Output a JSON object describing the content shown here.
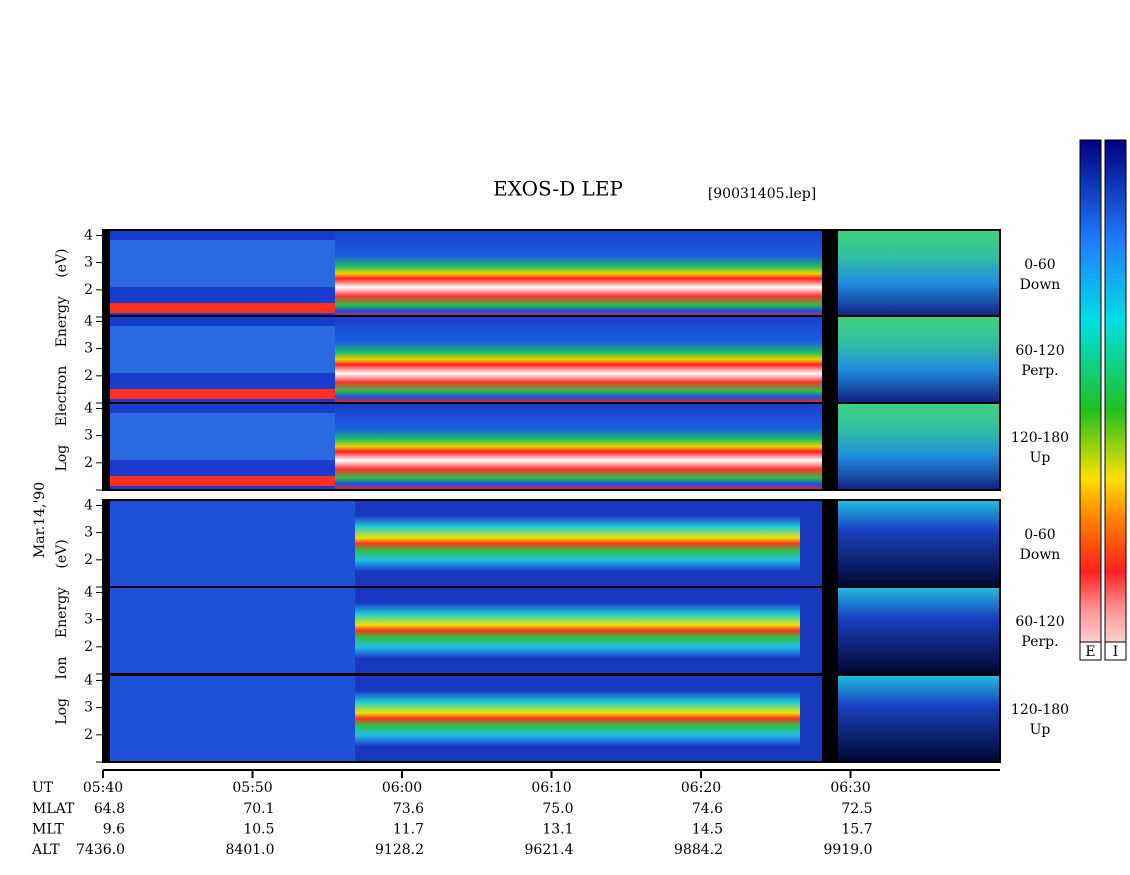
{
  "chart_data": {
    "type": "spectrogram",
    "title": "EXOS-D LEP",
    "subtitle": "[90031405.lep]",
    "date_label": "Mar.14,'90",
    "electron_axis_label": "Log Electron Energy (eV)",
    "ion_axis_label": "Log Ion Energy (eV)",
    "xlim": [
      340,
      400
    ],
    "xticks": [
      {
        "value": 340,
        "label": "05:40"
      },
      {
        "value": 350,
        "label": "05:50"
      },
      {
        "value": 360,
        "label": "06:00"
      },
      {
        "value": 370,
        "label": "06:10"
      },
      {
        "value": 380,
        "label": "06:20"
      },
      {
        "value": 390,
        "label": "06:30"
      }
    ],
    "time_row_label": "UT",
    "ephemeris": [
      {
        "name": "MLAT",
        "values": [
          "64.8",
          "70.1",
          "73.6",
          "75.0",
          "74.6",
          "72.5"
        ]
      },
      {
        "name": "MLT",
        "values": [
          "9.6",
          "10.5",
          "11.7",
          "13.1",
          "14.5",
          "15.7"
        ]
      },
      {
        "name": "ALT",
        "values": [
          "7436.0",
          "8401.0",
          "9128.2",
          "9621.4",
          "9884.2",
          "9919.0"
        ]
      }
    ],
    "ylim": [
      1,
      4.2
    ],
    "yticks": [
      1,
      2,
      3,
      4
    ],
    "ytick_labels_shown": [
      2,
      3,
      4
    ],
    "panels": [
      {
        "species": "E",
        "angle": "0-60",
        "direction": "Down"
      },
      {
        "species": "E",
        "angle": "60-120",
        "direction": "Perp."
      },
      {
        "species": "E",
        "angle": "120-180",
        "direction": "Up"
      },
      {
        "species": "I",
        "angle": "0-60",
        "direction": "Down"
      },
      {
        "species": "I",
        "angle": "60-120",
        "direction": "Perp."
      },
      {
        "species": "I",
        "angle": "120-180",
        "direction": "Up"
      }
    ],
    "colorbar_labels": [
      "E",
      "I"
    ]
  }
}
